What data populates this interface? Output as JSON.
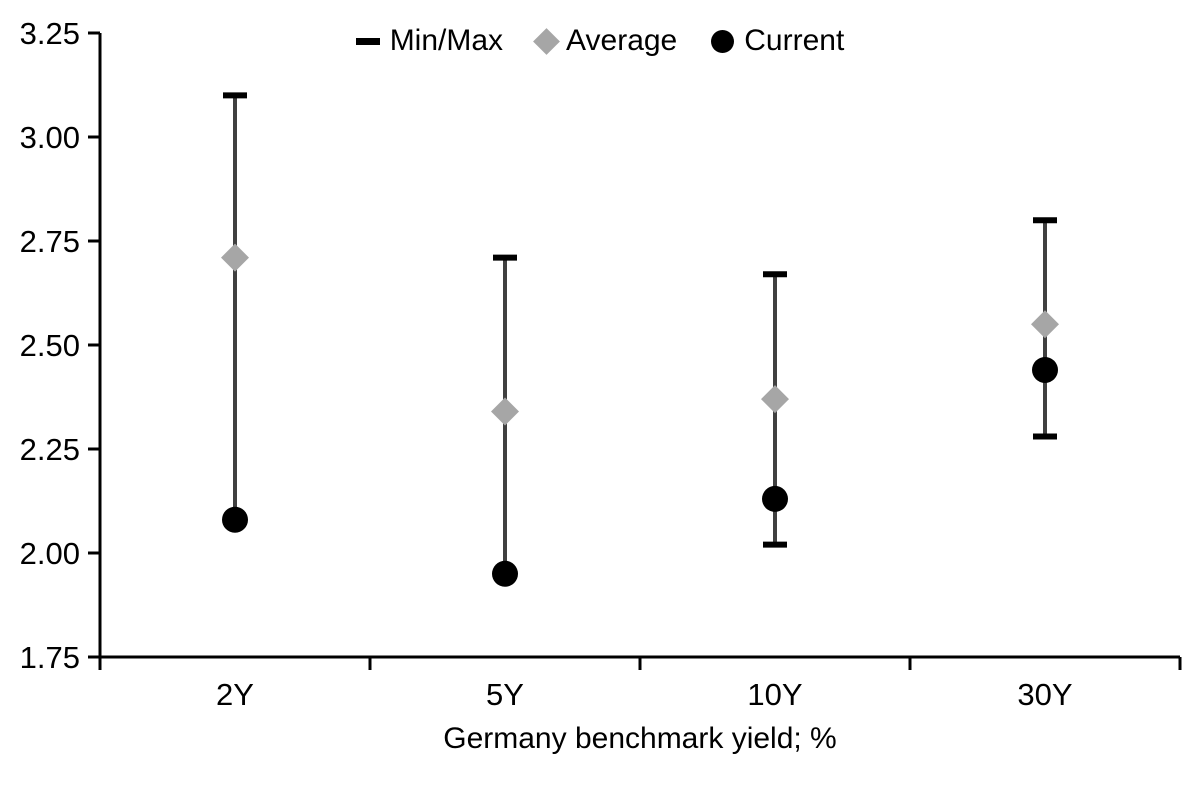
{
  "chart_data": {
    "type": "scatter",
    "title": "",
    "xlabel": "Germany benchmark yield; %",
    "ylabel": "",
    "categories": [
      "2Y",
      "5Y",
      "10Y",
      "30Y"
    ],
    "ylim": [
      1.75,
      3.25
    ],
    "ytick_step": 0.25,
    "yticks": [
      "3.25",
      "3.00",
      "2.75",
      "2.50",
      "2.25",
      "2.00",
      "1.75"
    ],
    "grid": "off",
    "legend_position": "top-center",
    "legend": [
      {
        "label": "Min/Max",
        "marker": "dash-icon",
        "color": "#000000"
      },
      {
        "label": "Average",
        "marker": "diamond-icon",
        "color": "#a6a6a6"
      },
      {
        "label": "Current",
        "marker": "circle-icon",
        "color": "#000000"
      }
    ],
    "series": [
      {
        "name": "Min",
        "values": [
          2.08,
          1.95,
          2.02,
          2.28
        ]
      },
      {
        "name": "Max",
        "values": [
          3.1,
          2.71,
          2.67,
          2.8
        ]
      },
      {
        "name": "Average",
        "values": [
          2.71,
          2.34,
          2.37,
          2.55
        ]
      },
      {
        "name": "Current",
        "values": [
          2.08,
          1.95,
          2.13,
          2.44
        ]
      }
    ],
    "colors": {
      "range_line": "#404040",
      "cap": "#000000",
      "average": "#a6a6a6",
      "current": "#000000",
      "axis": "#000000"
    }
  }
}
